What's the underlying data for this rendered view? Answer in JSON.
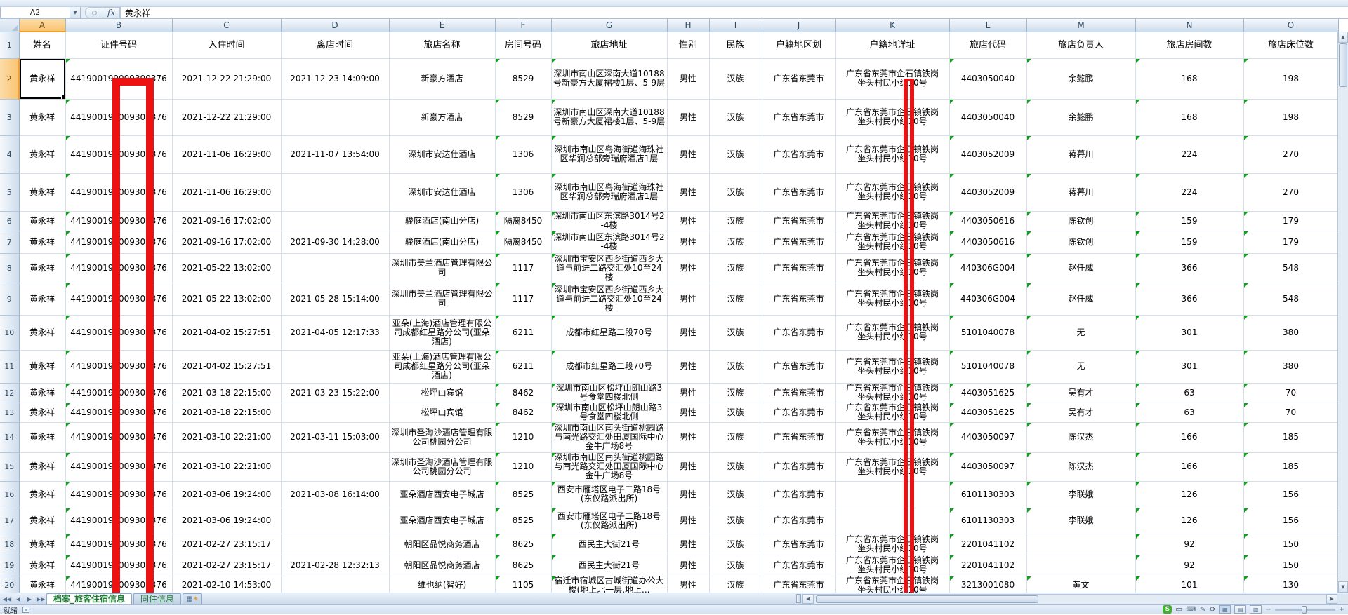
{
  "chrome": {
    "name_box": "A2",
    "fx_label": "fx",
    "formula_value": "黄永祥",
    "sheet_tabs": [
      "档案_旅客住宿信息",
      "同住信息"
    ],
    "status_ready": "就绪",
    "ime_badge": "S",
    "ime_mode": "中"
  },
  "columns": {
    "letters": [
      "A",
      "B",
      "C",
      "D",
      "E",
      "F",
      "G",
      "H",
      "I",
      "J",
      "K",
      "L",
      "M",
      "N",
      "O"
    ],
    "headers": [
      "姓名",
      "证件号码",
      "入住时间",
      "离店时间",
      "旅店名称",
      "房间号码",
      "旅店地址",
      "性别",
      "民族",
      "户籍地区划",
      "户籍地详址",
      "旅店代码",
      "旅店负责人",
      "旅店房间数",
      "旅店床位数"
    ]
  },
  "annotations": {
    "redaction_color": "#EE1111",
    "redaction_targets": [
      "证件号码出生段",
      "户籍地详址门牌段"
    ]
  },
  "rows": [
    {
      "num": 2,
      "a": "黄永祥",
      "b": "441900199009300376",
      "c": "2021-12-22 21:29:00",
      "d": "2021-12-23 14:09:00",
      "e": "新豪方酒店",
      "f": "8529",
      "g": "深圳市南山区深南大道10188号新豪方大厦裙楼1层、5-9层",
      "h": "男性",
      "i": "汉族",
      "j": "广东省东莞市",
      "k": "广东省东莞市企石镇铁岗\n坐头村民小组10号",
      "l": "4403050040",
      "m": "余懿鹏",
      "n": "168",
      "o": "198"
    },
    {
      "num": 3,
      "a": "黄永祥",
      "b": "441900199009300376",
      "c": "2021-12-22 21:29:00",
      "d": "",
      "e": "新豪方酒店",
      "f": "8529",
      "g": "深圳市南山区深南大道10188号新豪方大厦裙楼1层、5-9层",
      "h": "男性",
      "i": "汉族",
      "j": "广东省东莞市",
      "k": "广东省东莞市企石镇铁岗\n坐头村民小组10号",
      "l": "4403050040",
      "m": "余懿鹏",
      "n": "168",
      "o": "198"
    },
    {
      "num": 4,
      "a": "黄永祥",
      "b": "441900199009300376",
      "c": "2021-11-06 16:29:00",
      "d": "2021-11-07 13:54:00",
      "e": "深圳市安达仕酒店",
      "f": "1306",
      "g": "深圳市南山区粤海街道海珠社区华润总部旁瑞府酒店1层",
      "h": "男性",
      "i": "汉族",
      "j": "广东省东莞市",
      "k": "广东省东莞市企石镇铁岗\n坐头村民小组10号",
      "l": "4403052009",
      "m": "蒋幕川",
      "n": "224",
      "o": "270"
    },
    {
      "num": 5,
      "a": "黄永祥",
      "b": "441900199009300376",
      "c": "2021-11-06 16:29:00",
      "d": "",
      "e": "深圳市安达仕酒店",
      "f": "1306",
      "g": "深圳市南山区粤海街道海珠社区华润总部旁瑞府酒店1层",
      "h": "男性",
      "i": "汉族",
      "j": "广东省东莞市",
      "k": "广东省东莞市企石镇铁岗\n坐头村民小组10号",
      "l": "4403052009",
      "m": "蒋幕川",
      "n": "224",
      "o": "270"
    },
    {
      "num": 6,
      "a": "黄永祥",
      "b": "441900199009300376",
      "c": "2021-09-16 17:02:00",
      "d": "",
      "e": "骏庭酒店(南山分店)",
      "f": "隔离8450",
      "g": "深圳市南山区东滨路3014号2-4楼",
      "h": "男性",
      "i": "汉族",
      "j": "广东省东莞市",
      "k": "广东省东莞市企石镇铁岗\n坐头村民小组10号",
      "l": "4403050616",
      "m": "陈钦创",
      "n": "159",
      "o": "179"
    },
    {
      "num": 7,
      "a": "黄永祥",
      "b": "441900199009300376",
      "c": "2021-09-16 17:02:00",
      "d": "2021-09-30 14:28:00",
      "e": "骏庭酒店(南山分店)",
      "f": "隔离8450",
      "g": "深圳市南山区东滨路3014号2-4楼",
      "h": "男性",
      "i": "汉族",
      "j": "广东省东莞市",
      "k": "广东省东莞市企石镇铁岗\n坐头村民小组10号",
      "l": "4403050616",
      "m": "陈钦创",
      "n": "159",
      "o": "179"
    },
    {
      "num": 8,
      "a": "黄永祥",
      "b": "441900199009300376",
      "c": "2021-05-22 13:02:00",
      "d": "",
      "e": "深圳市美兰酒店管理有限公司",
      "f": "1117",
      "g": "深圳市宝安区西乡街道西乡大道与前进二路交汇处10至24楼",
      "h": "男性",
      "i": "汉族",
      "j": "广东省东莞市",
      "k": "广东省东莞市企石镇铁岗\n坐头村民小组10号",
      "l": "440306G004",
      "m": "赵任威",
      "n": "366",
      "o": "548"
    },
    {
      "num": 9,
      "a": "黄永祥",
      "b": "441900199009300376",
      "c": "2021-05-22 13:02:00",
      "d": "2021-05-28 15:14:00",
      "e": "深圳市美兰酒店管理有限公司",
      "f": "1117",
      "g": "深圳市宝安区西乡街道西乡大道与前进二路交汇处10至24楼",
      "h": "男性",
      "i": "汉族",
      "j": "广东省东莞市",
      "k": "广东省东莞市企石镇铁岗\n坐头村民小组10号",
      "l": "440306G004",
      "m": "赵任威",
      "n": "366",
      "o": "548"
    },
    {
      "num": 10,
      "a": "黄永祥",
      "b": "441900199009300376",
      "c": "2021-04-02 15:27:51",
      "d": "2021-04-05 12:17:33",
      "e": "亚朵(上海)酒店管理有限公司成都红星路分公司(亚朵酒店)",
      "f": "6211",
      "g": "成都市红星路二段70号",
      "h": "男性",
      "i": "汉族",
      "j": "广东省东莞市",
      "k": "广东省东莞市企石镇铁岗\n坐头村民小组10号",
      "l": "5101040078",
      "m": "无",
      "n": "301",
      "o": "380"
    },
    {
      "num": 11,
      "a": "黄永祥",
      "b": "441900199009300376",
      "c": "2021-04-02 15:27:51",
      "d": "",
      "e": "亚朵(上海)酒店管理有限公司成都红星路分公司(亚朵酒店)",
      "f": "6211",
      "g": "成都市红星路二段70号",
      "h": "男性",
      "i": "汉族",
      "j": "广东省东莞市",
      "k": "广东省东莞市企石镇铁岗\n坐头村民小组10号",
      "l": "5101040078",
      "m": "无",
      "n": "301",
      "o": "380"
    },
    {
      "num": 12,
      "a": "黄永祥",
      "b": "441900199009300376",
      "c": "2021-03-18 22:15:00",
      "d": "2021-03-23 15:22:00",
      "e": "松坪山宾馆",
      "f": "8462",
      "g": "深圳市南山区松坪山朗山路3号食堂四楼北侧",
      "h": "男性",
      "i": "汉族",
      "j": "广东省东莞市",
      "k": "广东省东莞市企石镇铁岗\n坐头村民小组10号",
      "l": "4403051625",
      "m": "吴有才",
      "n": "63",
      "o": "70"
    },
    {
      "num": 13,
      "a": "黄永祥",
      "b": "441900199009300376",
      "c": "2021-03-18 22:15:00",
      "d": "",
      "e": "松坪山宾馆",
      "f": "8462",
      "g": "深圳市南山区松坪山朗山路3号食堂四楼北侧",
      "h": "男性",
      "i": "汉族",
      "j": "广东省东莞市",
      "k": "广东省东莞市企石镇铁岗\n坐头村民小组10号",
      "l": "4403051625",
      "m": "吴有才",
      "n": "63",
      "o": "70"
    },
    {
      "num": 14,
      "a": "黄永祥",
      "b": "441900199009300376",
      "c": "2021-03-10 22:21:00",
      "d": "2021-03-11 15:03:00",
      "e": "深圳市圣淘沙酒店管理有限公司桃园分公司",
      "f": "1210",
      "g": "深圳市南山区南头街道桃园路与南光路交汇处田厦国际中心金牛广场8号",
      "h": "男性",
      "i": "汉族",
      "j": "广东省东莞市",
      "k": "广东省东莞市企石镇铁岗\n坐头村民小组10号",
      "l": "4403050097",
      "m": "陈汉杰",
      "n": "166",
      "o": "185"
    },
    {
      "num": 15,
      "a": "黄永祥",
      "b": "441900199009300376",
      "c": "2021-03-10 22:21:00",
      "d": "",
      "e": "深圳市圣淘沙酒店管理有限公司桃园分公司",
      "f": "1210",
      "g": "深圳市南山区南头街道桃园路与南光路交汇处田厦国际中心金牛广场8号",
      "h": "男性",
      "i": "汉族",
      "j": "广东省东莞市",
      "k": "广东省东莞市企石镇铁岗\n坐头村民小组10号",
      "l": "4403050097",
      "m": "陈汉杰",
      "n": "166",
      "o": "185"
    },
    {
      "num": 16,
      "a": "黄永祥",
      "b": "441900199009300376",
      "c": "2021-03-06 19:24:00",
      "d": "2021-03-08 16:14:00",
      "e": "亚朵酒店西安电子城店",
      "f": "8525",
      "g": "西安市雁塔区电子二路18号(东仪路派出所)",
      "h": "男性",
      "i": "汉族",
      "j": "广东省东莞市",
      "k": "",
      "l": "6101130303",
      "m": "李联娥",
      "n": "126",
      "o": "156"
    },
    {
      "num": 17,
      "a": "黄永祥",
      "b": "441900199009300376",
      "c": "2021-03-06 19:24:00",
      "d": "",
      "e": "亚朵酒店西安电子城店",
      "f": "8525",
      "g": "西安市雁塔区电子二路18号(东仪路派出所)",
      "h": "男性",
      "i": "汉族",
      "j": "广东省东莞市",
      "k": "",
      "l": "6101130303",
      "m": "李联娥",
      "n": "126",
      "o": "156"
    },
    {
      "num": 18,
      "a": "黄永祥",
      "b": "441900199009300376",
      "c": "2021-02-27 23:15:17",
      "d": "",
      "e": "朝阳区品悦商务酒店",
      "f": "8625",
      "g": "西民主大街21号",
      "h": "男性",
      "i": "汉族",
      "j": "广东省东莞市",
      "k": "广东省东莞市企石镇铁岗\n坐头村民小组10号",
      "l": "2201041102",
      "m": "",
      "n": "92",
      "o": "150"
    },
    {
      "num": 19,
      "a": "黄永祥",
      "b": "441900199009300376",
      "c": "2021-02-27 23:15:17",
      "d": "2021-02-28 12:32:13",
      "e": "朝阳区品悦商务酒店",
      "f": "8625",
      "g": "西民主大街21号",
      "h": "男性",
      "i": "汉族",
      "j": "广东省东莞市",
      "k": "广东省东莞市企石镇铁岗\n坐头村民小组10号",
      "l": "2201041102",
      "m": "",
      "n": "92",
      "o": "150"
    },
    {
      "num": 20,
      "a": "黄永祥",
      "b": "441900199009300376",
      "c": "2021-02-10 14:53:00",
      "d": "",
      "e": "维也纳(智好)",
      "f": "1105",
      "g": "宿迁市宿城区古城街道办公大楼(地上北一层,地上...",
      "h": "男性",
      "i": "汉族",
      "j": "广东省东莞市",
      "k": "广东省东莞市企石镇铁岗\n坐头村民小组10号",
      "l": "3213001080",
      "m": "黄文",
      "n": "101",
      "o": "130"
    }
  ]
}
